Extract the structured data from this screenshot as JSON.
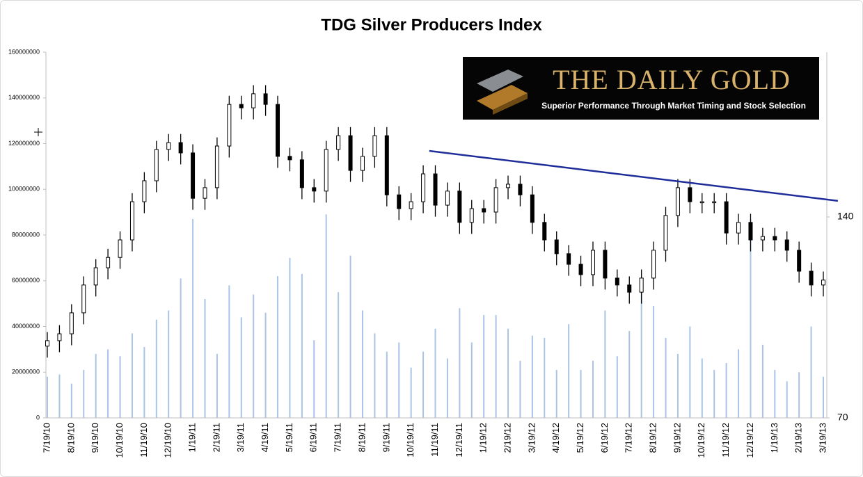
{
  "chart_data": {
    "type": "candlestick",
    "title": "TDG Silver Producers Index",
    "categories": [
      "7/19/10",
      null,
      "8/19/10",
      null,
      "9/19/10",
      null,
      "10/19/10",
      null,
      "11/19/10",
      null,
      "12/19/10",
      null,
      "1/19/11",
      null,
      "2/19/11",
      null,
      "3/19/11",
      null,
      "4/19/11",
      null,
      "5/19/11",
      null,
      "6/19/11",
      null,
      "7/19/11",
      null,
      "8/19/11",
      null,
      "9/19/11",
      null,
      "10/19/11",
      null,
      "11/19/11",
      null,
      "12/19/11",
      null,
      "1/19/12",
      null,
      "2/19/12",
      null,
      "3/19/12",
      null,
      "4/19/12",
      null,
      "5/19/12",
      null,
      "6/19/12",
      null,
      "7/19/12",
      null,
      "8/19/12",
      null,
      "9/19/12",
      null,
      "10/19/12",
      null,
      "11/19/12",
      null,
      "12/19/12",
      null,
      "1/19/13",
      null,
      "2/19/13",
      null,
      "3/19/13"
    ],
    "open": [
      95.0,
      96.9,
      99.3,
      106.6,
      116.3,
      122.3,
      125.9,
      132.0,
      145.3,
      152.6,
      163.5,
      165.9,
      162.3,
      146.5,
      150.2,
      164.7,
      179.2,
      178.0,
      182.9,
      179.2,
      161.1,
      159.9,
      150.2,
      149.0,
      163.5,
      168.3,
      156.2,
      161.1,
      168.3,
      147.7,
      142.9,
      145.3,
      155.0,
      144.1,
      149.0,
      138.1,
      142.9,
      141.7,
      150.2,
      151.4,
      147.7,
      138.1,
      132.0,
      127.2,
      123.5,
      119.9,
      128.4,
      118.7,
      116.3,
      113.8,
      118.7,
      128.4,
      140.5,
      150.2,
      145.3,
      145.3,
      145.3,
      134.4,
      138.1,
      132.0,
      133.2,
      132.0,
      128.4,
      121.1,
      116.3
    ],
    "high": [
      99.9,
      102.3,
      109.6,
      119.3,
      125.3,
      128.9,
      135.0,
      148.3,
      155.6,
      166.5,
      168.9,
      168.9,
      165.3,
      153.2,
      167.7,
      182.2,
      182.2,
      185.9,
      185.9,
      182.2,
      164.1,
      162.9,
      153.2,
      166.5,
      171.3,
      171.3,
      164.1,
      171.3,
      171.3,
      150.7,
      148.3,
      158.0,
      158.0,
      152.0,
      152.0,
      145.9,
      145.9,
      153.2,
      154.4,
      154.4,
      150.7,
      141.1,
      135.0,
      130.2,
      126.5,
      131.4,
      131.4,
      121.7,
      119.3,
      121.7,
      131.4,
      143.5,
      153.2,
      153.2,
      148.3,
      148.3,
      148.3,
      141.1,
      141.1,
      136.2,
      136.2,
      135.0,
      131.4,
      124.1,
      121.0
    ],
    "low": [
      91.0,
      92.9,
      95.3,
      102.6,
      112.3,
      118.3,
      121.9,
      128.0,
      141.3,
      148.6,
      159.5,
      158.3,
      142.5,
      142.5,
      146.2,
      160.7,
      174.0,
      174.0,
      175.2,
      157.1,
      155.9,
      146.2,
      145.0,
      145.0,
      159.5,
      152.2,
      152.2,
      157.1,
      143.7,
      138.9,
      138.9,
      141.3,
      140.1,
      140.1,
      134.1,
      134.1,
      137.7,
      137.7,
      146.2,
      143.7,
      134.1,
      128.0,
      123.2,
      119.5,
      115.9,
      115.9,
      114.7,
      112.3,
      109.8,
      109.8,
      114.7,
      124.4,
      136.5,
      141.3,
      141.3,
      141.3,
      130.4,
      130.4,
      128.0,
      128.0,
      128.0,
      124.4,
      117.1,
      112.3,
      112.3
    ],
    "close": [
      96.9,
      99.3,
      106.6,
      116.3,
      122.3,
      125.9,
      132.0,
      145.3,
      152.6,
      163.5,
      165.9,
      162.3,
      146.5,
      150.2,
      164.7,
      179.2,
      178.0,
      182.9,
      179.2,
      161.1,
      159.9,
      150.2,
      149.0,
      163.5,
      168.3,
      156.2,
      161.1,
      168.3,
      147.7,
      142.9,
      145.3,
      155.0,
      144.1,
      149.0,
      138.1,
      142.9,
      141.7,
      150.2,
      151.4,
      147.7,
      138.1,
      132.0,
      127.2,
      123.5,
      119.9,
      128.4,
      118.7,
      116.3,
      113.8,
      118.7,
      128.4,
      140.5,
      150.2,
      145.3,
      145.3,
      145.3,
      134.4,
      138.1,
      132.0,
      133.2,
      132.0,
      128.4,
      121.1,
      116.3,
      118.0
    ],
    "candle_color": "#000000",
    "volume": {
      "color": "#a9c4e6",
      "values": [
        18000000,
        19000000,
        15000000,
        21000000,
        28000000,
        30000000,
        27000000,
        37000000,
        31000000,
        43000000,
        47000000,
        61000000,
        87000000,
        52000000,
        28000000,
        58000000,
        44000000,
        54000000,
        46000000,
        62000000,
        70000000,
        63000000,
        34000000,
        89000000,
        55000000,
        71000000,
        47000000,
        37000000,
        29000000,
        33000000,
        22000000,
        29000000,
        39000000,
        26000000,
        48000000,
        33000000,
        45000000,
        45000000,
        39000000,
        25000000,
        36000000,
        35000000,
        21000000,
        41000000,
        21000000,
        25000000,
        47000000,
        27000000,
        38000000,
        60000000,
        49000000,
        35000000,
        28000000,
        40000000,
        26000000,
        21000000,
        24000000,
        30000000,
        87000000,
        32000000,
        21000000,
        16000000,
        20000000,
        40000000,
        18000000
      ]
    },
    "ylim": [
      0,
      160000000
    ],
    "yticks": [
      0,
      20000000,
      40000000,
      60000000,
      80000000,
      100000000,
      120000000,
      140000000,
      160000000
    ],
    "y2lim": [
      70,
      197.4
    ],
    "y2ticks": [
      70,
      140
    ],
    "trendline": {
      "color": "#1f2d9b",
      "start": 31.5,
      "end": 65.2,
      "values": [
        163.0,
        145.6
      ]
    },
    "logo": {
      "title": "THE DAILY GOLD",
      "tagline": "Superior Performance Through  Market Timing and Stock Selection"
    }
  }
}
